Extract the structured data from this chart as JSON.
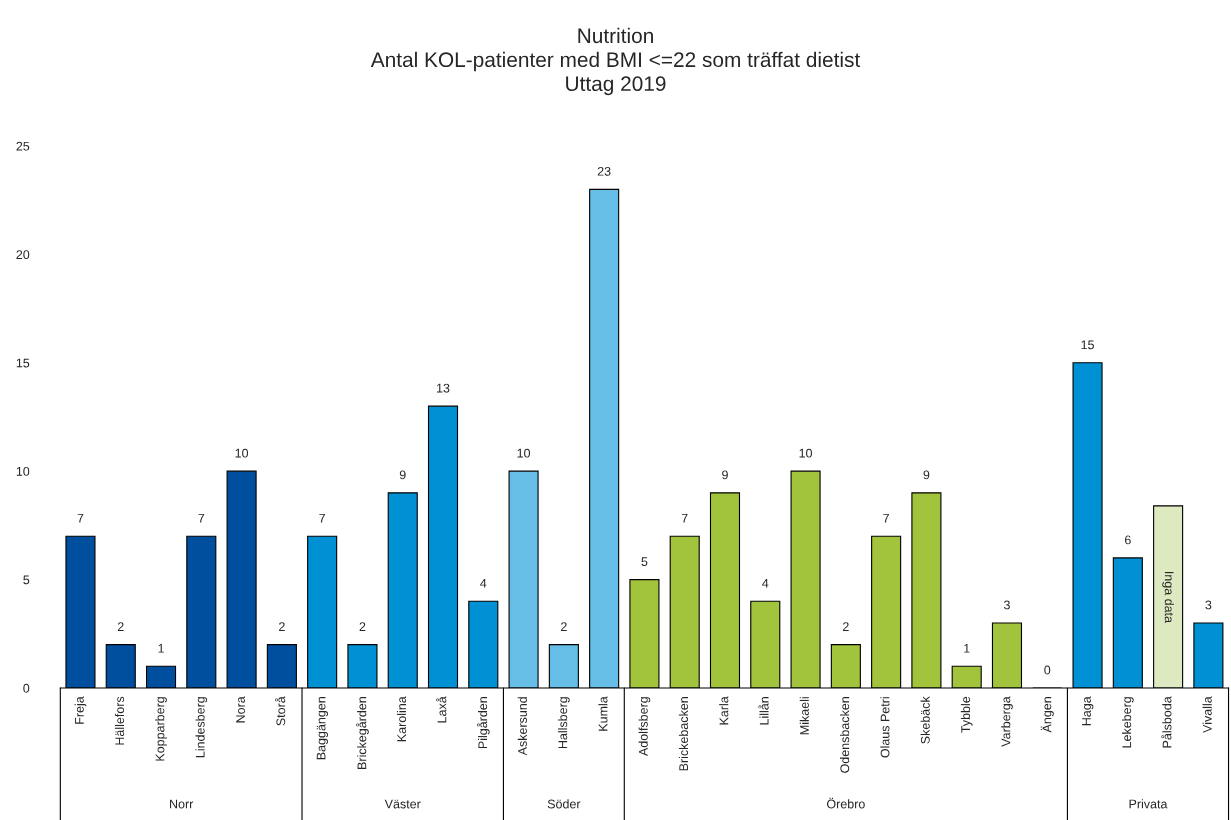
{
  "chart_data": {
    "type": "bar",
    "title": "Nutrition\nAntal KOL-patienter med BMI <=22 som träffat dietist\nUttag 2019",
    "categories": [
      "Freja",
      "Hällefors",
      "Kopparberg",
      "Lindesberg",
      "Nora",
      "Storå",
      "Baggängen",
      "Brickegården",
      "Karolina",
      "Laxå",
      "Pilgården",
      "Askersund",
      "Hallsberg",
      "Kumla",
      "Adolfsberg",
      "Brickebacken",
      "Karla",
      "Lillån",
      "Mikaeli",
      "Odensbacken",
      "Olaus Petri",
      "Skebäck",
      "Tybble",
      "Varberga",
      "Ängen",
      "Haga",
      "Lekeberg",
      "Pålsboda",
      "Vivalla"
    ],
    "series": [
      {
        "color": "#004f9f",
        "values": [
          7,
          2,
          1,
          7,
          10,
          2,
          null,
          null,
          null,
          null,
          null,
          null,
          null,
          null,
          null,
          null,
          null,
          null,
          null,
          null,
          null,
          null,
          null,
          null,
          null,
          null,
          null,
          null,
          null
        ]
      },
      {
        "color": "#0090d4",
        "values": [
          null,
          null,
          null,
          null,
          null,
          null,
          7,
          2,
          9,
          13,
          4,
          null,
          null,
          null,
          null,
          null,
          null,
          null,
          null,
          null,
          null,
          null,
          null,
          null,
          null,
          null,
          null,
          null,
          null
        ]
      },
      {
        "color": "#66bde6",
        "values": [
          null,
          null,
          null,
          null,
          null,
          null,
          null,
          null,
          null,
          null,
          null,
          10,
          2,
          23,
          null,
          null,
          null,
          null,
          null,
          null,
          null,
          null,
          null,
          null,
          null,
          null,
          null,
          null,
          null
        ]
      },
      {
        "color": "#a2c43c",
        "values": [
          null,
          null,
          null,
          null,
          null,
          null,
          null,
          null,
          null,
          null,
          null,
          null,
          null,
          null,
          5,
          7,
          9,
          4,
          10,
          2,
          7,
          9,
          1,
          3,
          0,
          null,
          null,
          null,
          null
        ]
      },
      {
        "color": "#0090d4",
        "values": [
          null,
          null,
          null,
          null,
          null,
          null,
          null,
          null,
          null,
          null,
          null,
          null,
          null,
          null,
          null,
          null,
          null,
          null,
          null,
          null,
          null,
          null,
          null,
          null,
          null,
          15,
          6,
          null,
          3
        ]
      },
      {
        "color": "#dde9c0",
        "values": [
          null,
          null,
          null,
          null,
          null,
          null,
          null,
          null,
          null,
          null,
          null,
          null,
          null,
          null,
          null,
          null,
          null,
          null,
          null,
          null,
          null,
          null,
          null,
          null,
          null,
          null,
          null,
          8.4,
          null
        ],
        "value_labels": [
          null,
          null,
          null,
          null,
          null,
          null,
          null,
          null,
          null,
          null,
          null,
          null,
          null,
          null,
          null,
          null,
          null,
          null,
          null,
          null,
          null,
          null,
          null,
          null,
          null,
          null,
          null,
          "Inga data",
          null
        ]
      }
    ],
    "annotations": [
      "Norr",
      "Väster",
      "Söder",
      "Örebro",
      "Privata"
    ],
    "ylim": [
      0,
      25
    ],
    "yticks": [
      0,
      5,
      10,
      15,
      20,
      25
    ],
    "data_labels": true,
    "grid": false,
    "legend": false
  }
}
